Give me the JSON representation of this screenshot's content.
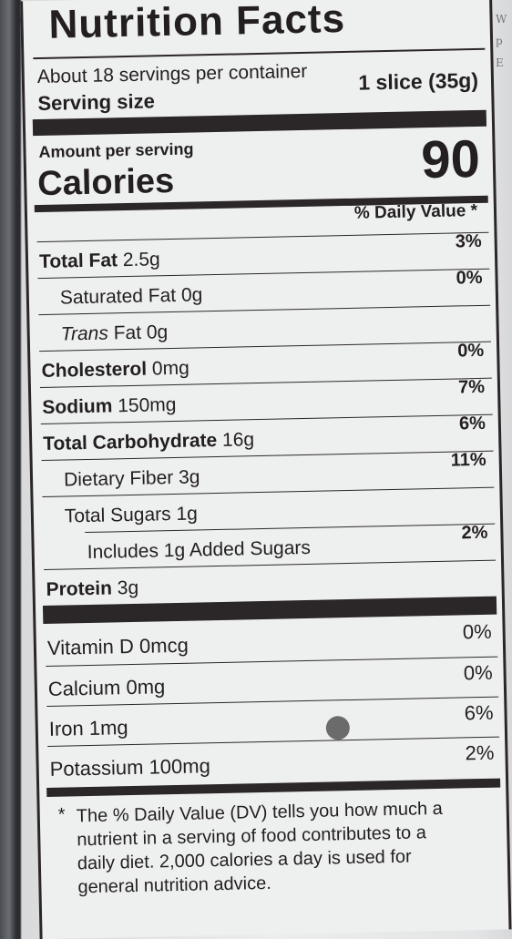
{
  "label": {
    "title": "Nutrition Facts",
    "servings_per_container": "About 18 servings per container",
    "serving_size_label": "Serving size",
    "serving_size_value": "1 slice (35g)",
    "amount_per_serving": "Amount per serving",
    "calories_label": "Calories",
    "calories_value": "90",
    "daily_value_header": "% Daily Value *"
  },
  "nutrients": [
    {
      "name": "Total Fat",
      "amount": "2.5g",
      "dv": "3%"
    },
    {
      "name": "Saturated Fat",
      "amount": "0g",
      "dv": "0%"
    },
    {
      "name": "Trans",
      "name_suffix": "Fat",
      "amount": "0g",
      "dv": ""
    },
    {
      "name": "Cholesterol",
      "amount": "0mg",
      "dv": "0%"
    },
    {
      "name": "Sodium",
      "amount": "150mg",
      "dv": "7%"
    },
    {
      "name": "Total Carbohydrate",
      "amount": "16g",
      "dv": "6%"
    },
    {
      "name": "Dietary Fiber",
      "amount": "3g",
      "dv": "11%"
    },
    {
      "name": "Total Sugars",
      "amount": "1g",
      "dv": ""
    },
    {
      "name": "Includes 1g Added Sugars",
      "amount": "",
      "dv": "2%"
    },
    {
      "name": "Protein",
      "amount": "3g",
      "dv": ""
    }
  ],
  "vitamins": [
    {
      "name": "Vitamin D",
      "amount": "0mcg",
      "dv": "0%"
    },
    {
      "name": "Calcium",
      "amount": "0mg",
      "dv": "0%"
    },
    {
      "name": "Iron",
      "amount": "1mg",
      "dv": "6%"
    },
    {
      "name": "Potassium",
      "amount": "100mg",
      "dv": "2%"
    }
  ],
  "footnote": {
    "star": "*",
    "lines": [
      "The % Daily Value (DV) tells you how much a",
      "nutrient in a serving of food contributes to a",
      "daily diet. 2,000 calories a day is used for",
      "general nutrition advice."
    ]
  },
  "side_text": [
    "W",
    "p",
    "E"
  ]
}
